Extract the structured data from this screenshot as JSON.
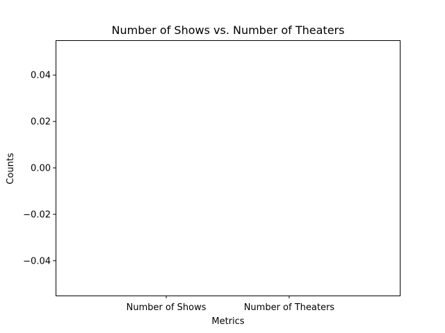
{
  "chart_data": {
    "type": "bar",
    "title": "Number of Shows vs. Number of Theaters",
    "xlabel": "Metrics",
    "ylabel": "Counts",
    "categories": [
      "Number of Shows",
      "Number of Theaters"
    ],
    "values": [
      0,
      0
    ],
    "ylim": [
      -0.055,
      0.055
    ],
    "yticks": [
      {
        "value": 0.04,
        "label": "0.04"
      },
      {
        "value": 0.02,
        "label": "0.02"
      },
      {
        "value": 0.0,
        "label": "0.00"
      },
      {
        "value": -0.02,
        "label": "−0.02"
      },
      {
        "value": -0.04,
        "label": "−0.04"
      }
    ],
    "grid": false,
    "bar_color": "#1f77b4"
  }
}
